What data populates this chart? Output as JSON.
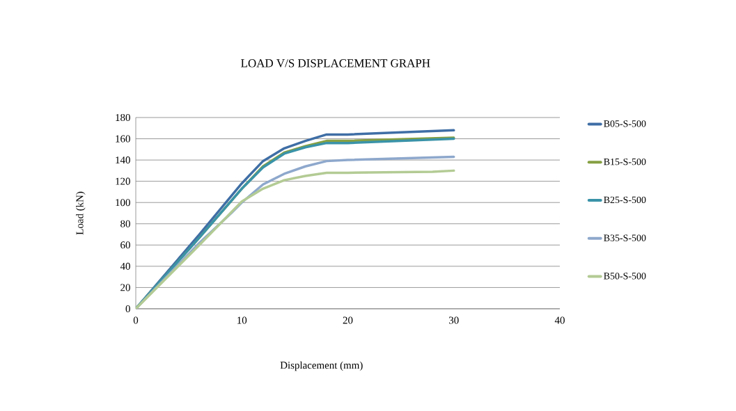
{
  "chart_data": {
    "type": "line",
    "title": "LOAD V/S DISPLACEMENT GRAPH",
    "xlabel": "Displacement  (mm)",
    "ylabel": "Load (kN)",
    "xlim": [
      0,
      40
    ],
    "xticks": [
      0,
      10,
      20,
      30,
      40
    ],
    "ylim": [
      0,
      180
    ],
    "yticks": [
      0,
      20,
      40,
      60,
      80,
      100,
      120,
      140,
      160,
      180
    ],
    "grid": "y",
    "legend": "right",
    "marker": "none",
    "line_style": "solid",
    "series": [
      {
        "name": "B05-S-500",
        "color": "#3f6ea5",
        "x": [
          0,
          6,
          10,
          12,
          14,
          16,
          18,
          20,
          30
        ],
        "values": [
          0,
          70,
          118,
          139,
          151,
          158,
          164,
          164,
          168
        ]
      },
      {
        "name": "B15-S-500",
        "color": "#86a042",
        "x": [
          0,
          6,
          10,
          12,
          14,
          16,
          18,
          20,
          30
        ],
        "values": [
          0,
          67,
          113,
          134,
          147,
          153,
          158,
          158,
          161
        ]
      },
      {
        "name": "B25-S-500",
        "color": "#3a93a8",
        "x": [
          0,
          6,
          10,
          12,
          14,
          16,
          18,
          20,
          30
        ],
        "values": [
          0,
          67,
          113,
          133,
          146,
          152,
          156,
          156,
          160
        ]
      },
      {
        "name": "B35-S-500",
        "color": "#8ea8cc",
        "x": [
          0,
          6,
          9,
          10,
          12,
          14,
          16,
          18,
          20,
          30
        ],
        "values": [
          0,
          62,
          90,
          100,
          117,
          127,
          134,
          139,
          140,
          143
        ]
      },
      {
        "name": "B50-S-500",
        "color": "#b3cb94",
        "x": [
          0,
          6,
          10,
          12,
          14,
          16,
          18,
          20,
          28,
          30
        ],
        "values": [
          0,
          60,
          101,
          113,
          121,
          125,
          128,
          128,
          129,
          130
        ]
      }
    ]
  }
}
